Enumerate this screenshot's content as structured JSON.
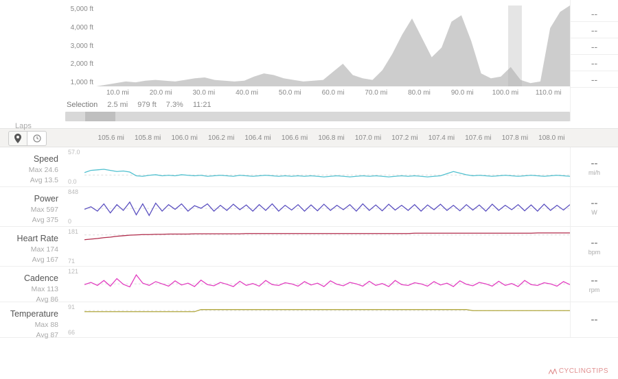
{
  "colors": {
    "elevation_fill": "#b8b8b8",
    "elevation_stroke": "#b8b8b8",
    "grid": "#eeeeee",
    "text_muted": "#888888",
    "speed": "#4fc0cf",
    "power": "#5a4fc0",
    "heart_rate": "#b02a4a",
    "cadence": "#e23cc0",
    "temperature": "#b0a63c",
    "dash": "#dddddd"
  },
  "elevation": {
    "y_ticks": [
      "5,000 ft",
      "4,000 ft",
      "3,000 ft",
      "2,000 ft",
      "1,000 ft"
    ],
    "x_ticks": [
      "10.0 mi",
      "20.0 mi",
      "30.0 mi",
      "40.0 mi",
      "50.0 mi",
      "60.0 mi",
      "70.0 mi",
      "80.0 mi",
      "90.0 mi",
      "100.0 mi",
      "110.0 mi"
    ],
    "profile": [
      0,
      100,
      200,
      300,
      250,
      350,
      400,
      350,
      300,
      400,
      500,
      550,
      400,
      350,
      300,
      350,
      600,
      800,
      700,
      500,
      400,
      300,
      350,
      400,
      900,
      1400,
      700,
      500,
      400,
      1000,
      2000,
      3200,
      4200,
      3000,
      1800,
      2400,
      4000,
      4400,
      2800,
      800,
      500,
      600,
      1200,
      400,
      200,
      300,
      3600,
      4600,
      5000
    ],
    "y_max": 5000,
    "brush_start_pct": 87.0,
    "brush_width_pct": 2.8,
    "right_col": [
      "--",
      "--",
      "--",
      "--",
      "--"
    ]
  },
  "selection": {
    "label": "Selection",
    "distance": "2.5 mi",
    "elevation": "979 ft",
    "grade": "7.3%",
    "time": "11:21",
    "highlight_start_pct": 4,
    "highlight_width_pct": 6
  },
  "laps_label": "Laps",
  "detail_x_ticks": [
    "105.6 mi",
    "105.8 mi",
    "106.0 mi",
    "106.2 mi",
    "106.4 mi",
    "106.6 mi",
    "106.8 mi",
    "107.0 mi",
    "107.2 mi",
    "107.4 mi",
    "107.6 mi",
    "107.8 mi",
    "108.0 mi"
  ],
  "view_tabs": {
    "active": "pin"
  },
  "metrics": [
    {
      "key": "speed",
      "title": "Speed",
      "max_label": "Max 24.6",
      "avg_label": "Avg 13.5",
      "y_top": "57.0",
      "y_bot": "0.0",
      "unit": "mi/h",
      "value": "--",
      "height": 58,
      "color": "#4fc0cf",
      "series": [
        18,
        22,
        23,
        24,
        22,
        20,
        21,
        19,
        12,
        11,
        13,
        14,
        12,
        13,
        12,
        14,
        13,
        12,
        13,
        11,
        12,
        13,
        12,
        11,
        13,
        12,
        11,
        12,
        13,
        12,
        11,
        12,
        11,
        12,
        11,
        12,
        11,
        10,
        11,
        12,
        11,
        10,
        11,
        12,
        11,
        12,
        11,
        10,
        11,
        12,
        11,
        12,
        11,
        10,
        11,
        12,
        16,
        20,
        17,
        14,
        12,
        13,
        12,
        11,
        12,
        13,
        12,
        11,
        12,
        13,
        12,
        11,
        12,
        13,
        12,
        11
      ],
      "y_range": [
        0,
        57
      ]
    },
    {
      "key": "power",
      "title": "Power",
      "max_label": "Max 597",
      "avg_label": "Avg 375",
      "y_top": "848",
      "y_bot": "0",
      "unit": "W",
      "value": "--",
      "height": 58,
      "color": "#5a4fc0",
      "series": [
        350,
        420,
        300,
        500,
        250,
        480,
        320,
        550,
        200,
        500,
        180,
        520,
        300,
        480,
        350,
        500,
        300,
        450,
        380,
        500,
        300,
        460,
        320,
        490,
        340,
        470,
        300,
        480,
        320,
        500,
        300,
        460,
        330,
        480,
        300,
        470,
        310,
        490,
        320,
        460,
        340,
        480,
        300,
        500,
        320,
        470,
        310,
        490,
        330,
        460,
        320,
        480,
        300,
        470,
        340,
        490,
        320,
        460,
        310,
        480,
        330,
        470,
        300,
        490,
        320,
        460,
        340,
        480,
        310,
        470,
        300,
        490,
        320,
        460,
        330,
        480
      ],
      "y_range": [
        0,
        848
      ]
    },
    {
      "key": "heart_rate",
      "title": "Heart Rate",
      "max_label": "Max 174",
      "avg_label": "Avg 167",
      "y_top": "181",
      "y_bot": "71",
      "unit": "bpm",
      "value": "--",
      "height": 58,
      "color": "#b02a4a",
      "series": [
        150,
        152,
        154,
        157,
        159,
        162,
        164,
        166,
        167,
        168,
        168,
        169,
        169,
        170,
        170,
        170,
        170,
        171,
        171,
        171,
        171,
        171,
        171,
        171,
        171,
        172,
        172,
        172,
        172,
        172,
        172,
        172,
        172,
        172,
        172,
        172,
        172,
        172,
        172,
        172,
        172,
        172,
        172,
        172,
        172,
        172,
        172,
        172,
        172,
        172,
        172,
        173,
        173,
        173,
        173,
        173,
        173,
        173,
        173,
        173,
        173,
        173,
        173,
        173,
        173,
        173,
        173,
        173,
        173,
        173,
        174,
        174,
        174,
        174,
        174,
        174
      ],
      "y_range": [
        71,
        181
      ]
    },
    {
      "key": "cadence",
      "title": "Cadence",
      "max_label": "Max 113",
      "avg_label": "Avg 86",
      "y_top": "121",
      "y_bot": "",
      "unit": "rpm",
      "value": "--",
      "height": 52,
      "color": "#e23cc0",
      "series": [
        84,
        90,
        82,
        95,
        80,
        100,
        85,
        78,
        110,
        88,
        82,
        92,
        86,
        80,
        94,
        83,
        88,
        79,
        96,
        84,
        81,
        90,
        85,
        79,
        93,
        82,
        87,
        80,
        95,
        84,
        82,
        89,
        86,
        80,
        92,
        83,
        88,
        79,
        94,
        85,
        81,
        90,
        86,
        80,
        93,
        82,
        87,
        79,
        95,
        84,
        82,
        89,
        86,
        80,
        92,
        83,
        88,
        79,
        94,
        85,
        81,
        90,
        86,
        80,
        93,
        82,
        87,
        79,
        95,
        84,
        82,
        89,
        86,
        80,
        92,
        84
      ],
      "y_range": [
        50,
        121
      ]
    },
    {
      "key": "temperature",
      "title": "Temperature",
      "max_label": "Max 88",
      "avg_label": "Avg 87",
      "y_top": "91",
      "y_bot": "66",
      "unit": "",
      "value": "--",
      "height": 52,
      "color": "#b0a63c",
      "series": [
        86,
        86,
        86,
        86,
        86,
        86,
        86,
        86,
        86,
        86,
        86,
        86,
        86,
        86,
        86,
        86,
        86,
        86,
        88,
        88,
        88,
        88,
        88,
        88,
        88,
        88,
        88,
        88,
        88,
        88,
        88,
        88,
        88,
        88,
        88,
        88,
        88,
        88,
        88,
        88,
        88,
        88,
        88,
        88,
        88,
        88,
        88,
        88,
        88,
        88,
        88,
        88,
        88,
        88,
        88,
        88,
        88,
        88,
        88,
        88,
        87,
        87,
        87,
        87,
        87,
        87,
        87,
        87,
        87,
        87,
        87,
        87,
        87,
        87,
        87,
        87
      ],
      "y_range": [
        66,
        91
      ]
    }
  ],
  "watermark": "CYCLINGTIPS"
}
